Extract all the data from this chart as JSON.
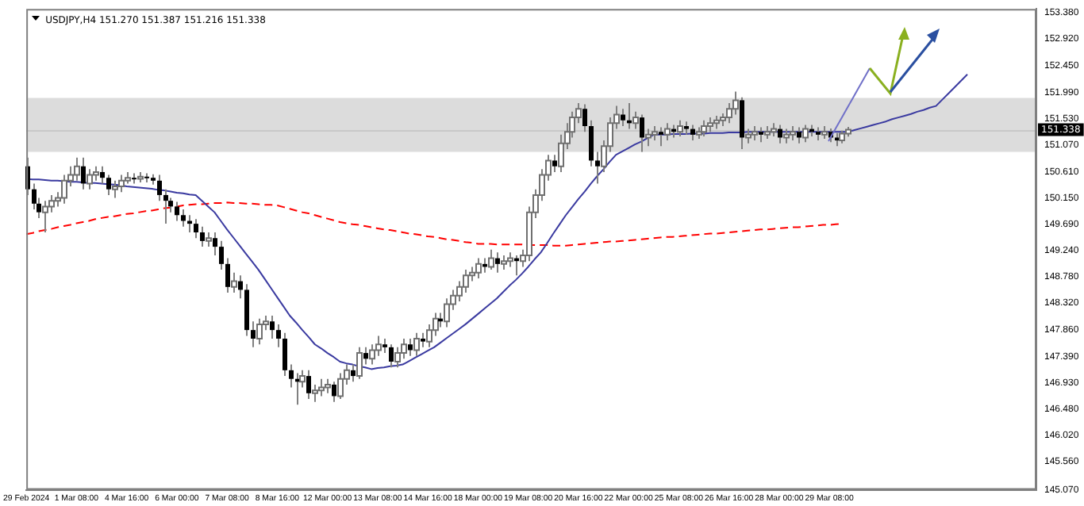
{
  "chart_data": {
    "type": "candlestick",
    "title": "USDJPY,H4 151.270 151.387 151.216 151.338",
    "categories": [
      "29 Feb 2024",
      null,
      null,
      null,
      null,
      null,
      null,
      null,
      "1 Mar 08:00",
      null,
      null,
      null,
      null,
      null,
      null,
      null,
      "4 Mar 16:00",
      null,
      null,
      null,
      null,
      null,
      null,
      null,
      "6 Mar 00:00",
      null,
      null,
      null,
      null,
      null,
      null,
      null,
      "7 Mar 08:00",
      null,
      null,
      null,
      null,
      null,
      null,
      null,
      "8 Mar 16:00",
      null,
      null,
      null,
      null,
      null,
      null,
      null,
      "12 Mar 00:00",
      null,
      null,
      null,
      null,
      null,
      null,
      null,
      "13 Mar 08:00",
      null,
      null,
      null,
      null,
      null,
      null,
      null,
      "14 Mar 16:00",
      null,
      null,
      null,
      null,
      null,
      null,
      null,
      "18 Mar 00:00",
      null,
      null,
      null,
      null,
      null,
      null,
      null,
      "19 Mar 08:00",
      null,
      null,
      null,
      null,
      null,
      null,
      null,
      "20 Mar 16:00",
      null,
      null,
      null,
      null,
      null,
      null,
      null,
      "22 Mar 00:00",
      null,
      null,
      null,
      null,
      null,
      null,
      null,
      "25 Mar 08:00",
      null,
      null,
      null,
      null,
      null,
      null,
      null,
      "26 Mar 16:00",
      null,
      null,
      null,
      null,
      null,
      null,
      null,
      "28 Mar 00:00",
      null,
      null,
      null,
      null,
      null,
      null,
      null,
      "29 Mar 08:00",
      null,
      null,
      null,
      null,
      null,
      null,
      null,
      null,
      null,
      null,
      null,
      null,
      null,
      null,
      null,
      null,
      null,
      null,
      null,
      null,
      null,
      null,
      null,
      null,
      null,
      null,
      null,
      null,
      null,
      null,
      null,
      null,
      null
    ],
    "ohlc": [
      [
        150.7,
        150.85,
        150.2,
        150.3
      ],
      [
        150.3,
        150.4,
        149.95,
        150.05
      ],
      [
        150.05,
        150.15,
        149.8,
        149.9
      ],
      [
        149.9,
        150.1,
        149.55,
        150.0
      ],
      [
        150.0,
        150.2,
        149.9,
        150.1
      ],
      [
        150.1,
        150.25,
        150.0,
        150.15
      ],
      [
        150.15,
        150.55,
        150.05,
        150.45
      ],
      [
        150.45,
        150.7,
        150.35,
        150.55
      ],
      [
        150.55,
        150.85,
        150.45,
        150.7
      ],
      [
        150.7,
        150.85,
        150.3,
        150.4
      ],
      [
        150.4,
        150.65,
        150.3,
        150.55
      ],
      [
        150.55,
        150.7,
        150.45,
        150.6
      ],
      [
        150.6,
        150.7,
        150.4,
        150.5
      ],
      [
        150.5,
        150.55,
        150.2,
        150.3
      ],
      [
        150.3,
        150.45,
        150.15,
        150.35
      ],
      [
        150.35,
        150.55,
        150.25,
        150.45
      ],
      [
        150.45,
        150.6,
        150.4,
        150.5
      ],
      [
        150.5,
        150.58,
        150.4,
        150.48
      ],
      [
        150.48,
        150.6,
        150.42,
        150.52
      ],
      [
        150.52,
        150.58,
        150.42,
        150.5
      ],
      [
        150.5,
        150.56,
        150.38,
        150.45
      ],
      [
        150.45,
        150.55,
        150.1,
        150.2
      ],
      [
        150.2,
        150.3,
        149.7,
        150.1
      ],
      [
        150.1,
        150.15,
        149.9,
        150.0
      ],
      [
        150.0,
        150.08,
        149.75,
        149.85
      ],
      [
        149.85,
        149.95,
        149.65,
        149.75
      ],
      [
        149.75,
        149.85,
        149.55,
        149.7
      ],
      [
        149.7,
        149.78,
        149.45,
        149.55
      ],
      [
        149.55,
        149.65,
        149.3,
        149.4
      ],
      [
        149.4,
        149.55,
        149.3,
        149.45
      ],
      [
        149.45,
        149.55,
        149.15,
        149.3
      ],
      [
        149.3,
        149.4,
        148.9,
        149.0
      ],
      [
        149.0,
        149.1,
        148.5,
        148.6
      ],
      [
        148.6,
        148.85,
        148.5,
        148.7
      ],
      [
        148.7,
        148.8,
        148.4,
        148.55
      ],
      [
        148.55,
        148.65,
        147.75,
        147.85
      ],
      [
        147.85,
        148.0,
        147.55,
        147.7
      ],
      [
        147.7,
        148.05,
        147.6,
        147.95
      ],
      [
        147.95,
        148.1,
        147.85,
        148.0
      ],
      [
        148.0,
        148.1,
        147.7,
        147.85
      ],
      [
        147.85,
        147.95,
        147.55,
        147.7
      ],
      [
        147.7,
        147.8,
        147.05,
        147.15
      ],
      [
        147.15,
        147.25,
        146.85,
        147.0
      ],
      [
        147.0,
        147.1,
        146.55,
        146.95
      ],
      [
        146.95,
        147.15,
        146.85,
        147.05
      ],
      [
        147.05,
        147.15,
        146.65,
        146.75
      ],
      [
        146.75,
        146.9,
        146.6,
        146.8
      ],
      [
        146.8,
        147.0,
        146.7,
        146.85
      ],
      [
        146.85,
        147.0,
        146.75,
        146.9
      ],
      [
        146.9,
        146.95,
        146.6,
        146.7
      ],
      [
        146.7,
        147.1,
        146.65,
        147.0
      ],
      [
        147.0,
        147.25,
        146.9,
        147.15
      ],
      [
        147.15,
        147.25,
        146.95,
        147.05
      ],
      [
        147.05,
        147.55,
        147.0,
        147.45
      ],
      [
        147.45,
        147.55,
        147.25,
        147.35
      ],
      [
        147.35,
        147.6,
        147.25,
        147.5
      ],
      [
        147.5,
        147.75,
        147.4,
        147.6
      ],
      [
        147.6,
        147.7,
        147.45,
        147.55
      ],
      [
        147.55,
        147.6,
        147.2,
        147.3
      ],
      [
        147.3,
        147.55,
        147.2,
        147.45
      ],
      [
        147.45,
        147.7,
        147.35,
        147.6
      ],
      [
        147.6,
        147.7,
        147.4,
        147.5
      ],
      [
        147.5,
        147.8,
        147.4,
        147.7
      ],
      [
        147.7,
        147.8,
        147.55,
        147.65
      ],
      [
        147.65,
        147.95,
        147.55,
        147.85
      ],
      [
        147.85,
        148.15,
        147.75,
        148.05
      ],
      [
        148.05,
        148.15,
        147.9,
        148.0
      ],
      [
        148.0,
        148.4,
        147.9,
        148.3
      ],
      [
        148.3,
        148.55,
        148.2,
        148.45
      ],
      [
        148.45,
        148.7,
        148.35,
        148.6
      ],
      [
        148.6,
        148.9,
        148.5,
        148.8
      ],
      [
        148.8,
        148.95,
        148.7,
        148.85
      ],
      [
        148.85,
        149.1,
        148.75,
        149.0
      ],
      [
        149.0,
        149.1,
        148.85,
        148.95
      ],
      [
        148.95,
        149.25,
        148.9,
        149.1
      ],
      [
        149.1,
        149.2,
        148.85,
        149.0
      ],
      [
        149.0,
        149.15,
        148.9,
        149.05
      ],
      [
        149.05,
        149.2,
        148.95,
        149.1
      ],
      [
        149.1,
        149.15,
        148.8,
        149.05
      ],
      [
        149.05,
        149.25,
        148.95,
        149.15
      ],
      [
        149.15,
        150.0,
        149.05,
        149.9
      ],
      [
        149.9,
        150.3,
        149.8,
        150.2
      ],
      [
        150.2,
        150.65,
        150.1,
        150.55
      ],
      [
        150.55,
        150.9,
        150.45,
        150.8
      ],
      [
        150.8,
        150.9,
        150.6,
        150.7
      ],
      [
        150.7,
        151.25,
        150.6,
        151.1
      ],
      [
        151.1,
        151.45,
        151.0,
        151.3
      ],
      [
        151.3,
        151.65,
        151.2,
        151.55
      ],
      [
        151.55,
        151.8,
        151.45,
        151.7
      ],
      [
        151.7,
        151.78,
        151.3,
        151.4
      ],
      [
        151.4,
        151.5,
        150.7,
        150.8
      ],
      [
        150.8,
        150.95,
        150.4,
        150.7
      ],
      [
        150.7,
        151.15,
        150.6,
        151.05
      ],
      [
        151.05,
        151.55,
        150.95,
        151.45
      ],
      [
        151.45,
        151.75,
        151.35,
        151.6
      ],
      [
        151.6,
        151.7,
        151.4,
        151.5
      ],
      [
        151.5,
        151.8,
        151.35,
        151.45
      ],
      [
        151.45,
        151.65,
        151.35,
        151.55
      ],
      [
        151.55,
        151.6,
        150.95,
        151.2
      ],
      [
        151.2,
        151.35,
        151.05,
        151.25
      ],
      [
        151.25,
        151.4,
        151.15,
        151.3
      ],
      [
        151.3,
        151.38,
        151.05,
        151.25
      ],
      [
        151.25,
        151.45,
        151.15,
        151.35
      ],
      [
        151.35,
        151.42,
        151.2,
        151.3
      ],
      [
        151.3,
        151.5,
        151.22,
        151.4
      ],
      [
        151.4,
        151.48,
        151.25,
        151.35
      ],
      [
        151.35,
        151.42,
        151.15,
        151.25
      ],
      [
        151.25,
        151.38,
        151.18,
        151.3
      ],
      [
        151.3,
        151.5,
        151.22,
        151.4
      ],
      [
        151.4,
        151.55,
        151.3,
        151.45
      ],
      [
        151.45,
        151.58,
        151.35,
        151.5
      ],
      [
        151.5,
        151.62,
        151.4,
        151.55
      ],
      [
        151.55,
        151.8,
        151.45,
        151.7
      ],
      [
        151.7,
        152.0,
        151.6,
        151.85
      ],
      [
        151.85,
        151.9,
        151.0,
        151.2
      ],
      [
        151.2,
        151.35,
        151.1,
        151.25
      ],
      [
        151.25,
        151.4,
        151.15,
        151.3
      ],
      [
        151.3,
        151.38,
        151.12,
        151.25
      ],
      [
        151.25,
        151.4,
        151.18,
        151.3
      ],
      [
        151.3,
        151.45,
        151.22,
        151.35
      ],
      [
        151.35,
        151.42,
        151.1,
        151.2
      ],
      [
        151.2,
        151.35,
        151.1,
        151.25
      ],
      [
        151.25,
        151.4,
        151.15,
        151.3
      ],
      [
        151.3,
        151.38,
        151.1,
        151.2
      ],
      [
        151.2,
        151.42,
        151.12,
        151.35
      ],
      [
        151.35,
        151.42,
        151.22,
        151.3
      ],
      [
        151.3,
        151.38,
        151.15,
        151.25
      ],
      [
        151.25,
        151.4,
        151.18,
        151.3
      ],
      [
        151.3,
        151.36,
        151.12,
        151.2
      ],
      [
        151.2,
        151.28,
        151.05,
        151.15
      ],
      [
        151.15,
        151.32,
        151.1,
        151.27
      ],
      [
        151.27,
        151.387,
        151.216,
        151.338
      ],
      null,
      null,
      null,
      null,
      null,
      null,
      null,
      null,
      null,
      null,
      null,
      null,
      null,
      null,
      null,
      null,
      null,
      null,
      null,
      null,
      null,
      null,
      null,
      null,
      null,
      null,
      null,
      null,
      null,
      null
    ],
    "series": [
      {
        "type": "line",
        "color": "#3a3aa0",
        "values": [
          150.48,
          150.47,
          150.47,
          150.46,
          150.45,
          150.45,
          150.44,
          150.43,
          150.43,
          150.42,
          150.41,
          150.41,
          150.4,
          150.39,
          150.38,
          150.37,
          150.35,
          150.34,
          150.33,
          150.32,
          150.31,
          150.29,
          150.28,
          150.26,
          150.24,
          150.23,
          150.21,
          150.2,
          150.1,
          150.0,
          149.9,
          149.75,
          149.6,
          149.46,
          149.32,
          149.18,
          149.04,
          148.9,
          148.74,
          148.58,
          148.42,
          148.26,
          148.1,
          147.98,
          147.85,
          147.73,
          147.6,
          147.53,
          147.45,
          147.38,
          147.3,
          147.27,
          147.25,
          147.22,
          147.2,
          147.17,
          147.19,
          147.2,
          147.22,
          147.23,
          147.25,
          147.31,
          147.37,
          147.43,
          147.49,
          147.55,
          147.63,
          147.71,
          147.79,
          147.87,
          147.95,
          148.04,
          148.13,
          148.22,
          148.31,
          148.4,
          148.51,
          148.62,
          148.72,
          148.83,
          148.95,
          149.08,
          149.2,
          149.36,
          149.53,
          149.69,
          149.85,
          149.99,
          150.13,
          150.26,
          150.4,
          150.53,
          150.65,
          150.78,
          150.9,
          150.96,
          151.02,
          151.08,
          151.13,
          151.19,
          151.25,
          151.25,
          151.25,
          151.26,
          151.26,
          151.26,
          151.27,
          151.27,
          151.27,
          151.28,
          151.28,
          151.28,
          151.29,
          151.29,
          151.29,
          151.3,
          151.3,
          151.3,
          151.3,
          151.3,
          151.3,
          151.3,
          151.3,
          151.3,
          151.3,
          151.3,
          151.3,
          151.3,
          151.3,
          151.3,
          151.3,
          151.3,
          151.33,
          151.36,
          151.39,
          151.42,
          151.45,
          151.48,
          151.52,
          151.55,
          151.58,
          151.61,
          151.65,
          151.68,
          151.72,
          151.75,
          151.86,
          151.97,
          152.08,
          152.19,
          152.3,
          null,
          null,
          null,
          null,
          null,
          null,
          null,
          null,
          null,
          null,
          null
        ]
      },
      {
        "type": "line",
        "color": "#ff0000",
        "line_style": "dashed",
        "values": [
          149.52,
          149.54,
          149.57,
          149.59,
          149.61,
          149.64,
          149.66,
          149.68,
          149.71,
          149.73,
          149.75,
          149.78,
          149.8,
          149.82,
          149.83,
          149.85,
          149.87,
          149.88,
          149.9,
          149.92,
          149.93,
          149.95,
          149.97,
          149.98,
          150.0,
          150.02,
          150.03,
          150.04,
          150.04,
          150.05,
          150.06,
          150.06,
          150.07,
          150.06,
          150.06,
          150.05,
          150.05,
          150.04,
          150.03,
          150.03,
          150.02,
          149.99,
          149.96,
          149.93,
          149.9,
          149.88,
          149.85,
          149.82,
          149.79,
          149.76,
          149.73,
          149.71,
          149.69,
          149.68,
          149.66,
          149.64,
          149.62,
          149.6,
          149.59,
          149.57,
          149.55,
          149.53,
          149.52,
          149.5,
          149.48,
          149.47,
          149.45,
          149.43,
          149.42,
          149.4,
          149.38,
          149.37,
          149.35,
          149.35,
          149.35,
          149.34,
          149.34,
          149.34,
          149.34,
          149.34,
          149.33,
          149.33,
          149.33,
          149.33,
          149.32,
          149.32,
          149.32,
          149.33,
          149.34,
          149.35,
          149.36,
          149.37,
          149.38,
          149.39,
          149.39,
          149.4,
          149.41,
          149.42,
          149.43,
          149.44,
          149.45,
          149.46,
          149.47,
          149.47,
          149.48,
          149.49,
          149.5,
          149.51,
          149.52,
          149.53,
          149.53,
          149.54,
          149.55,
          149.56,
          149.57,
          149.58,
          149.59,
          149.6,
          149.6,
          149.61,
          149.62,
          149.63,
          149.64,
          149.64,
          149.65,
          149.66,
          149.67,
          149.68,
          149.68,
          149.69,
          149.7,
          null,
          null,
          null,
          null,
          null,
          null,
          null,
          null,
          null,
          null,
          null,
          null,
          null,
          null,
          null,
          null,
          null,
          null,
          null,
          null,
          null,
          null,
          null,
          null,
          null,
          null,
          null,
          null,
          null,
          null,
          null
        ]
      }
    ],
    "ylim": [
      145.07,
      153.44
    ],
    "yticks": [
      {
        "value": 153.38,
        "label": "153.380"
      },
      {
        "value": 152.92,
        "label": "152.920"
      },
      {
        "value": 152.45,
        "label": "152.450"
      },
      {
        "value": 151.99,
        "label": "151.990"
      },
      {
        "value": 151.53,
        "label": "151.530"
      },
      {
        "value": 151.07,
        "label": "151.070"
      },
      {
        "value": 150.61,
        "label": "150.610"
      },
      {
        "value": 150.15,
        "label": "150.150"
      },
      {
        "value": 149.69,
        "label": "149.690"
      },
      {
        "value": 149.24,
        "label": "149.240"
      },
      {
        "value": 148.78,
        "label": "148.780"
      },
      {
        "value": 148.32,
        "label": "148.320"
      },
      {
        "value": 147.86,
        "label": "147.860"
      },
      {
        "value": 147.39,
        "label": "147.390"
      },
      {
        "value": 146.93,
        "label": "146.930"
      },
      {
        "value": 146.48,
        "label": "146.480"
      },
      {
        "value": 146.02,
        "label": "146.020"
      },
      {
        "value": 145.56,
        "label": "145.560"
      },
      {
        "value": 145.07,
        "label": "145.070"
      }
    ],
    "ref_lines": [
      {
        "axis": "y",
        "value": 151.338,
        "label": "151.338",
        "color": "#c8c8c8"
      }
    ],
    "bands": [
      {
        "axis": "y",
        "from": 150.95,
        "to": 151.89,
        "color": "#dcdcdc"
      }
    ],
    "grid": false,
    "legend": false,
    "marker": "none"
  }
}
